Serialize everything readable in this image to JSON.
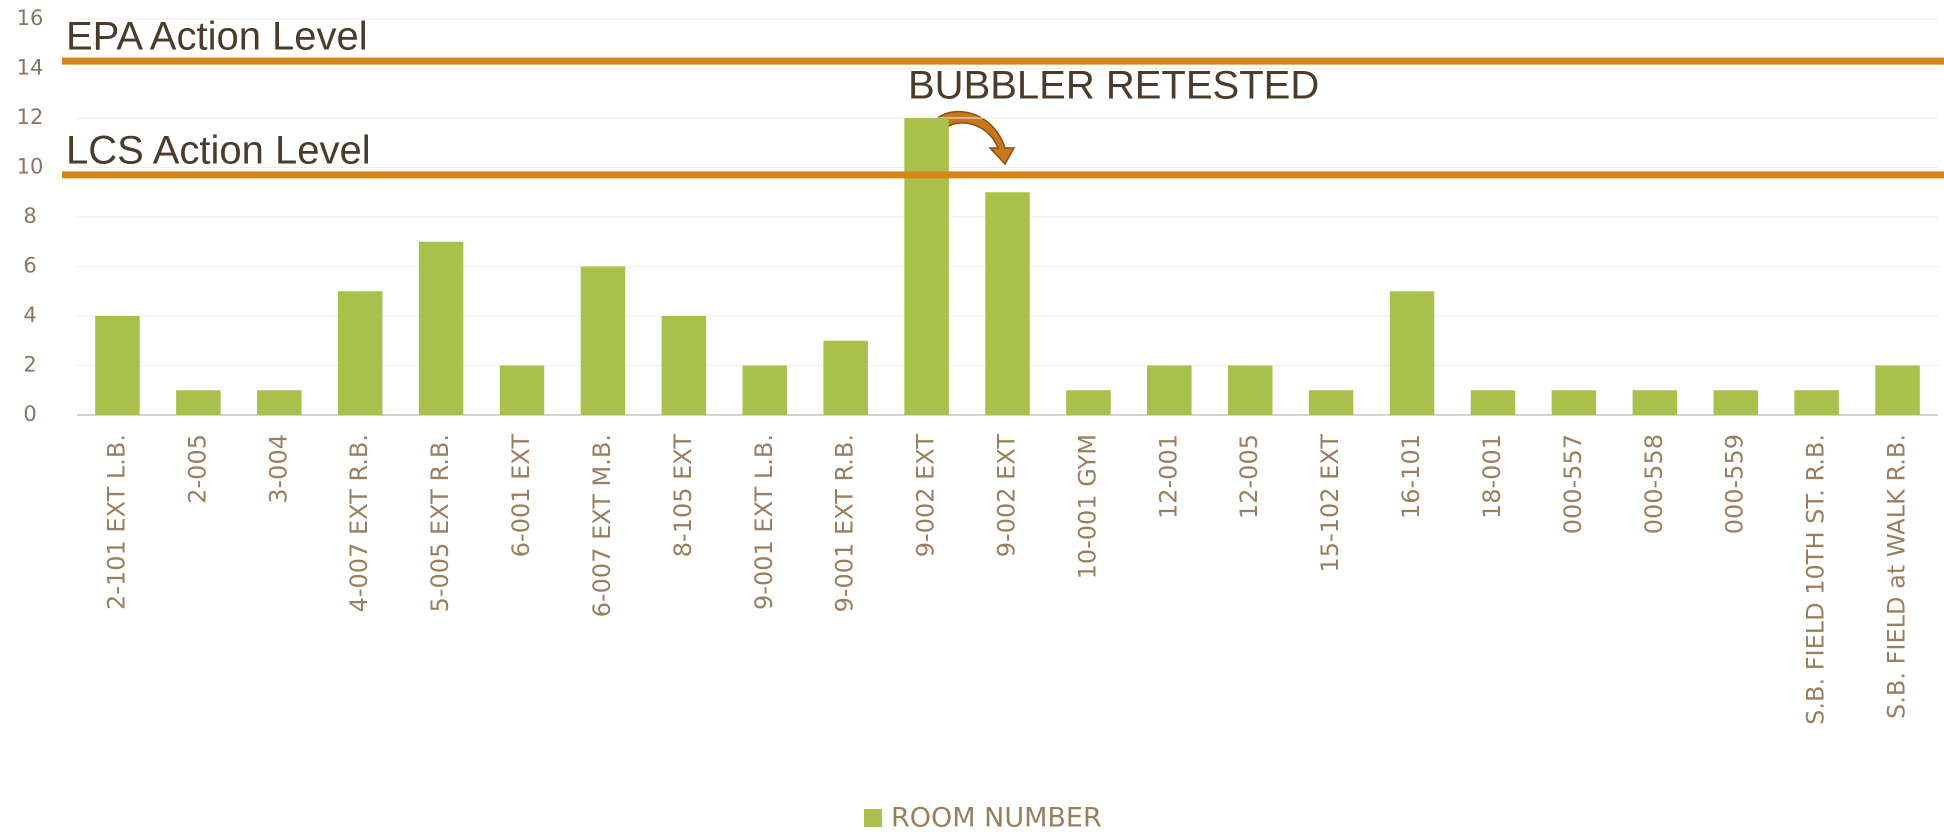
{
  "chart_data": {
    "type": "bar",
    "categories": [
      "2-101 EXT L.B.",
      "2-005",
      "3-004",
      "4-007 EXT R.B.",
      "5-005 EXT R.B.",
      "6-001 EXT",
      "6-007 EXT M.B.",
      "8-105 EXT",
      "9-001 EXT L.B.",
      "9-001 EXT R.B.",
      "9-002 EXT",
      "9-002 EXT",
      "10-001 GYM",
      "12-001",
      "12-005",
      "15-102 EXT",
      "16-101",
      "18-001",
      "000-557",
      "000-558",
      "000-559",
      "S.B. FIELD 10TH ST. R.B.",
      "S.B. FIELD at WALK R.B."
    ],
    "series": [
      {
        "name": "ROOM NUMBER",
        "color": "#a9c04a",
        "values": [
          4,
          1,
          1,
          5,
          7,
          2,
          6,
          4,
          2,
          3,
          12,
          9,
          1,
          2,
          2,
          1,
          5,
          1,
          1,
          1,
          1,
          1,
          2
        ]
      }
    ],
    "ylim": [
      0,
      16
    ],
    "yticks": [
      0,
      2,
      4,
      6,
      8,
      10,
      12,
      14,
      16
    ],
    "grid": true,
    "reference_lines": [
      {
        "label": "EPA Action  Level",
        "value": 14.3,
        "color": "#d4861a"
      },
      {
        "label": "LCS Action  Level",
        "value": 9.7,
        "color": "#d4861a"
      }
    ],
    "annotations": [
      "BUBBLER RETESTED"
    ],
    "legend": "bottom"
  }
}
